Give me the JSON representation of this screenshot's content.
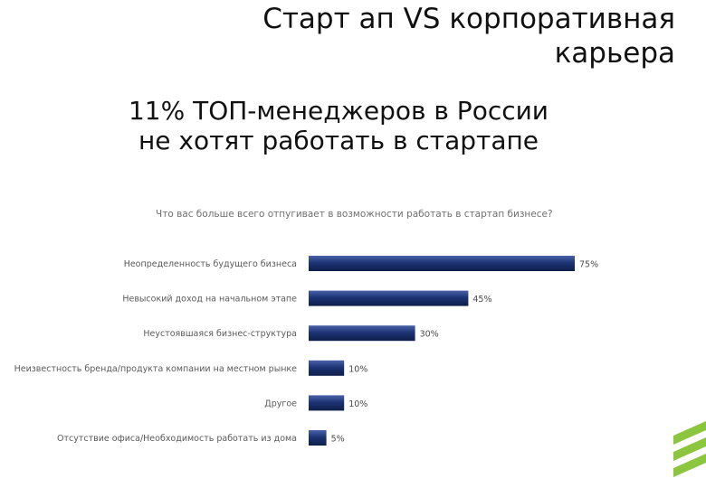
{
  "slide": {
    "title": "Старт ап VS корпоративная карьера",
    "subtitle_line1": "11% ТОП-менеджеров в России",
    "subtitle_line2": "не хотят работать в стартапе"
  },
  "chart_data": {
    "type": "bar",
    "orientation": "horizontal",
    "title": "Что вас больше всего отпугивает в возможности работать в стартап бизнесе?",
    "categories": [
      "Неопределенность будущего бизнеса",
      "Невысокий доход на начальном этапе",
      "Неустоявшаяся бизнес-структура",
      "Неизвестность бренда/продукта компании на местном рынке",
      "Другое",
      "Отсутствие офиса/Необходимость работать из дома"
    ],
    "values": [
      75,
      45,
      30,
      10,
      10,
      5
    ],
    "value_labels": [
      "75%",
      "45%",
      "30%",
      "10%",
      "10%",
      "5%"
    ],
    "xlim": [
      0,
      100
    ],
    "grid": false,
    "colors": {
      "bar": "#1d3475",
      "bar_highlight": "#4a62a8",
      "bar_shadow": "#0e1d4a"
    }
  },
  "decor": {
    "accent_color": "#8cc63f"
  }
}
